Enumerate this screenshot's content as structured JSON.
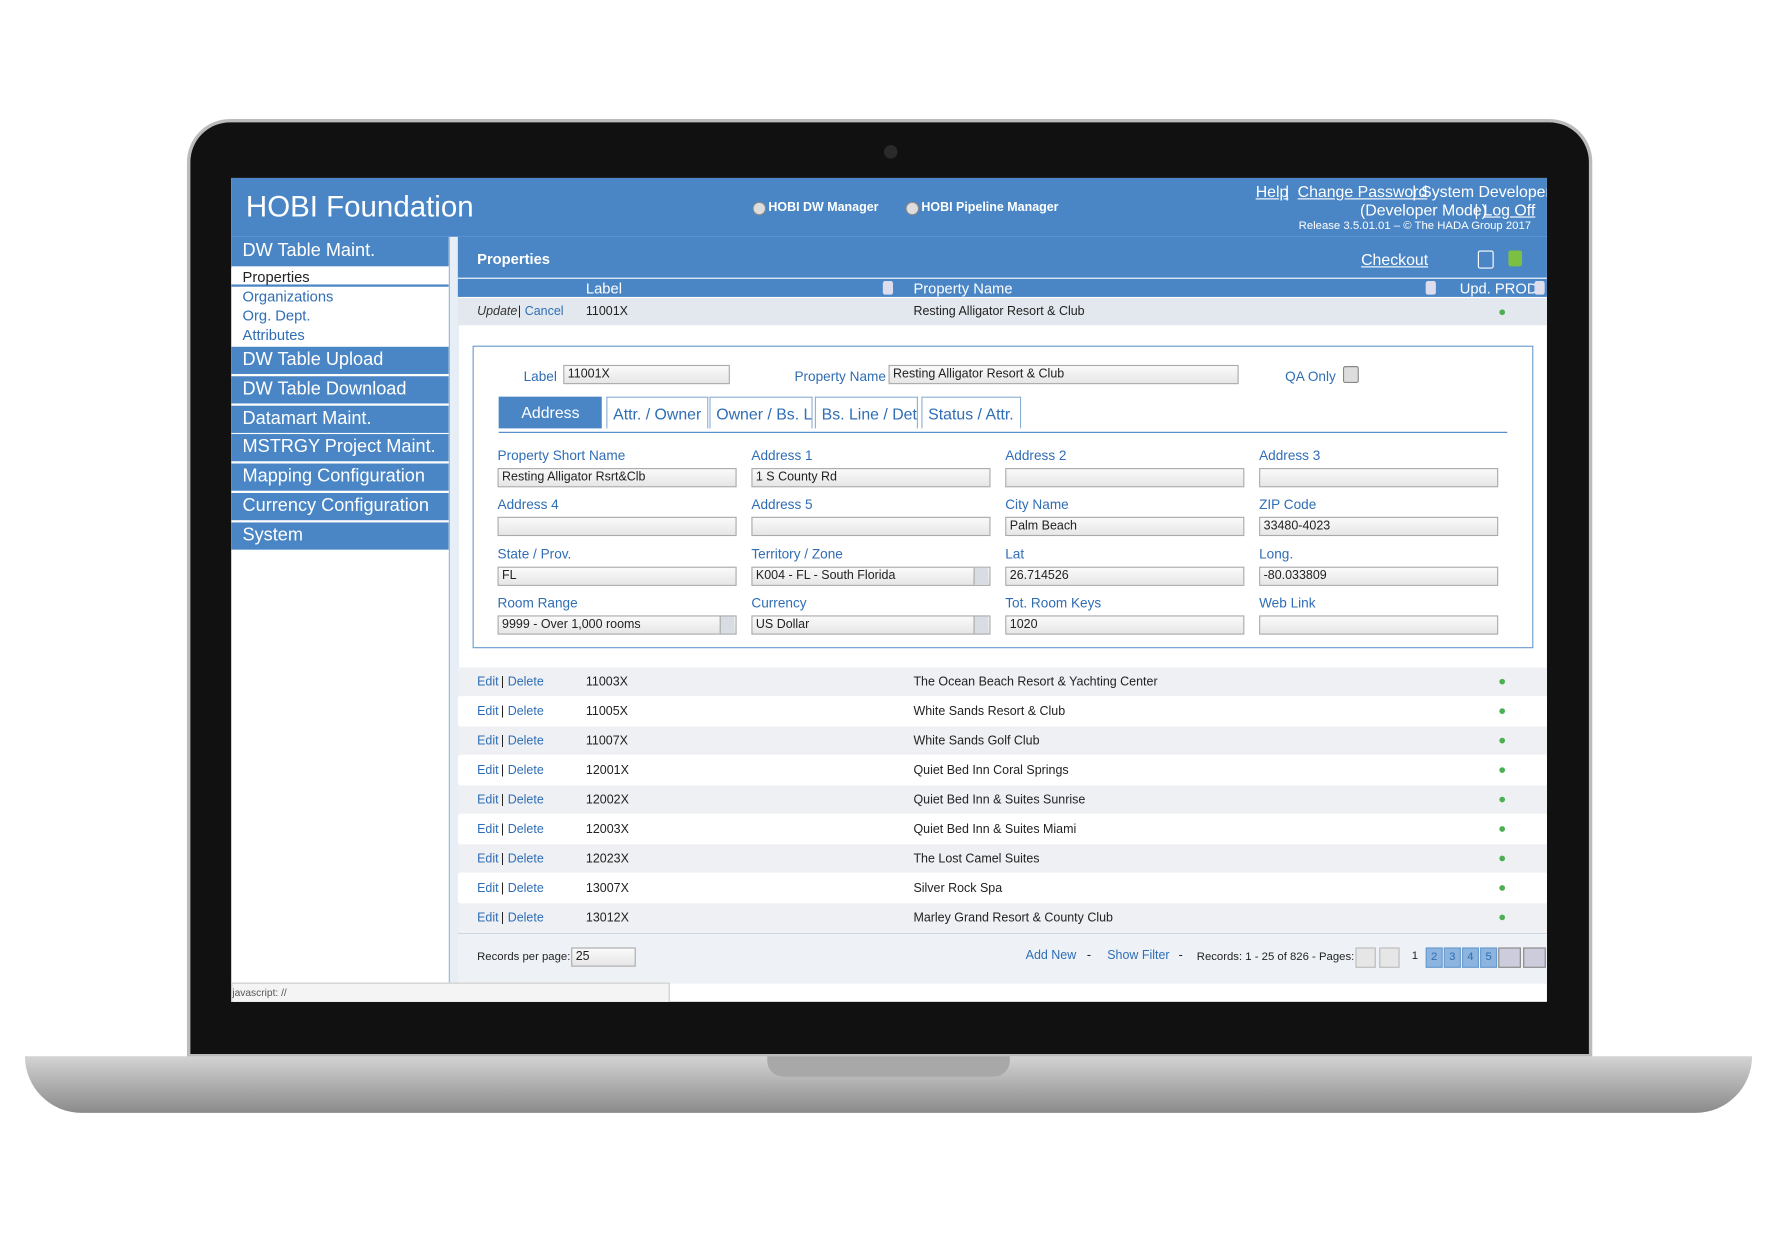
{
  "header": {
    "title": "HOBI Foundation",
    "apps": [
      "HOBI DW Manager",
      "HOBI Pipeline Manager"
    ],
    "links": {
      "help": "Help",
      "change_password": "Change Password",
      "user": "System Developer",
      "mode": "(Developer Mode)",
      "log_off": "Log Off"
    },
    "release": "Release 3.5.01.01 – © The HADA Group 2017"
  },
  "nav": {
    "group": "DW Table Maint.",
    "sub_items": [
      "Properties",
      "Organizations",
      "Org. Dept.",
      "Attributes"
    ],
    "selected": 0,
    "items": [
      "DW Table Upload",
      "DW Table Download",
      "Datamart Maint.",
      "MSTRGY Project Maint.",
      "Mapping Configuration",
      "Currency Configuration",
      "System"
    ]
  },
  "panel": {
    "title": "Properties",
    "checkout": "Checkout",
    "columns": [
      "Label",
      "Property Name",
      "Upd. PROD"
    ]
  },
  "editing": {
    "actions": [
      "Update",
      "Cancel"
    ],
    "label": "11001X",
    "name": "Resting Alligator Resort & Club"
  },
  "form": {
    "top": [
      {
        "label": "Label",
        "value": "11001X"
      },
      {
        "label": "Property Name",
        "value": "Resting Alligator Resort & Club"
      }
    ],
    "qa_only": "QA Only",
    "tabs": [
      "Address",
      "Attr. / Owner",
      "Owner / Bs. Lin",
      "Bs. Line / Det.",
      "Status / Attr."
    ],
    "active_tab": 0,
    "fields": [
      {
        "label": "Property Short Name",
        "value": "Resting Alligator Rsrt&Clb"
      },
      {
        "label": "Address 1",
        "value": "1 S County Rd"
      },
      {
        "label": "Address 2",
        "value": ""
      },
      {
        "label": "Address 3",
        "value": ""
      },
      {
        "label": "Address 4",
        "value": ""
      },
      {
        "label": "Address 5",
        "value": ""
      },
      {
        "label": "City Name",
        "value": "Palm Beach"
      },
      {
        "label": "ZIP Code",
        "value": "33480-4023"
      },
      {
        "label": "State / Prov.",
        "value": "FL"
      },
      {
        "label": "Territory / Zone",
        "value": "K004 - FL - South Florida",
        "select": true
      },
      {
        "label": "Lat",
        "value": "26.714526"
      },
      {
        "label": "Long.",
        "value": "-80.033809"
      },
      {
        "label": "Room Range",
        "value": "9999 - Over 1,000 rooms",
        "select": true
      },
      {
        "label": "Currency",
        "value": "US Dollar",
        "select": true
      },
      {
        "label": "Tot. Room Keys",
        "value": "1020"
      },
      {
        "label": "Web Link",
        "value": ""
      }
    ]
  },
  "table": {
    "actions": [
      "Edit",
      "Delete"
    ],
    "rows": [
      {
        "label": "11003X",
        "name": "The Ocean Beach Resort & Yachting Center"
      },
      {
        "label": "11005X",
        "name": "White Sands Resort & Club"
      },
      {
        "label": "11007X",
        "name": "White Sands Golf Club"
      },
      {
        "label": "12001X",
        "name": "Quiet Bed Inn Coral Springs"
      },
      {
        "label": "12002X",
        "name": "Quiet Bed Inn & Suites Sunrise"
      },
      {
        "label": "12003X",
        "name": "Quiet Bed Inn & Suites Miami"
      },
      {
        "label": "12023X",
        "name": "The Lost Camel Suites"
      },
      {
        "label": "13007X",
        "name": "Silver Rock Spa"
      },
      {
        "label": "13012X",
        "name": "Marley Grand Resort & County Club"
      }
    ]
  },
  "footer": {
    "per_page_label": "Records per page:",
    "per_page": "25",
    "add_new": "Add New",
    "show_filter": "Show Filter",
    "records": "Records: 1 - 25 of 826 - Pages:",
    "pages": [
      "1",
      "2",
      "3",
      "4",
      "5"
    ],
    "current_page": 0
  },
  "status_bar": "javascript: //"
}
